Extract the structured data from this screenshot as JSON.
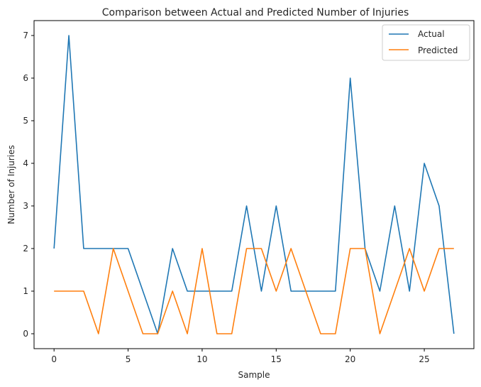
{
  "chart_data": {
    "type": "line",
    "title": "Comparison between Actual and Predicted Number of Injuries",
    "xlabel": "Sample",
    "ylabel": "Number of Injuries",
    "xlim": [
      -1.35,
      28.35
    ],
    "ylim": [
      -0.35,
      7.35
    ],
    "xticks": [
      0,
      5,
      10,
      15,
      20,
      25
    ],
    "yticks": [
      0,
      1,
      2,
      3,
      4,
      5,
      6,
      7
    ],
    "grid": false,
    "legend_position": "top-right",
    "x": [
      0,
      1,
      2,
      3,
      4,
      5,
      6,
      7,
      8,
      9,
      10,
      11,
      12,
      13,
      14,
      15,
      16,
      17,
      18,
      19,
      20,
      21,
      22,
      23,
      24,
      25,
      26,
      27
    ],
    "series": [
      {
        "name": "Actual",
        "color": "#1f77b4",
        "values": [
          2,
          7,
          2,
          2,
          2,
          2,
          1,
          0,
          2,
          1,
          1,
          1,
          1,
          3,
          1,
          3,
          1,
          1,
          1,
          1,
          6,
          2,
          1,
          3,
          1,
          4,
          3,
          0
        ]
      },
      {
        "name": "Predicted",
        "color": "#ff7f0e",
        "values": [
          1,
          1,
          1,
          0,
          2,
          1,
          0,
          0,
          1,
          0,
          2,
          0,
          0,
          2,
          2,
          1,
          2,
          1,
          0,
          0,
          2,
          2,
          0,
          1,
          2,
          1,
          2,
          2
        ]
      }
    ]
  }
}
